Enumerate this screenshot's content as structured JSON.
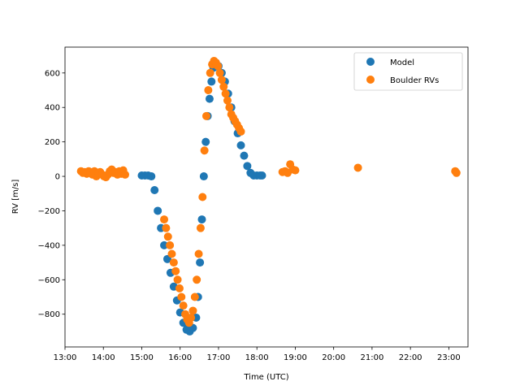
{
  "chart_data": {
    "type": "scatter",
    "title": "",
    "xlabel": "Time (UTC)",
    "ylabel": "RV [m/s]",
    "xlim": [
      "13:00",
      "23:30"
    ],
    "ylim": [
      -990,
      750
    ],
    "x_ticks": [
      "13:00",
      "14:00",
      "15:00",
      "16:00",
      "17:00",
      "18:00",
      "19:00",
      "20:00",
      "21:00",
      "22:00",
      "23:00"
    ],
    "y_ticks": [
      -800,
      -600,
      -400,
      -200,
      0,
      200,
      400,
      600
    ],
    "grid": false,
    "legend_position": "top-right",
    "series": [
      {
        "name": "Model",
        "color": "#1f77b4",
        "x": [
          "15:00",
          "15:05",
          "15:10",
          "15:15",
          "15:20",
          "15:25",
          "15:30",
          "15:35",
          "15:40",
          "15:45",
          "15:50",
          "15:55",
          "16:00",
          "16:05",
          "16:10",
          "16:15",
          "16:20",
          "16:25",
          "16:28",
          "16:31",
          "16:34",
          "16:37",
          "16:40",
          "16:43",
          "16:46",
          "16:49",
          "16:52",
          "16:55",
          "17:00",
          "17:05",
          "17:10",
          "17:15",
          "17:20",
          "17:25",
          "17:30",
          "17:35",
          "17:40",
          "17:45",
          "17:50",
          "17:55",
          "18:00",
          "18:05",
          "18:08"
        ],
        "y": [
          5,
          5,
          5,
          0,
          -80,
          -200,
          -300,
          -400,
          -480,
          -560,
          -640,
          -720,
          -790,
          -850,
          -890,
          -900,
          -880,
          -820,
          -700,
          -500,
          -250,
          0,
          200,
          350,
          450,
          550,
          630,
          660,
          640,
          600,
          550,
          480,
          400,
          320,
          250,
          180,
          120,
          60,
          20,
          5,
          5,
          5,
          5
        ]
      },
      {
        "name": "Boulder RVs",
        "color": "#ff7f0e",
        "x": [
          "13:25",
          "13:28",
          "13:31",
          "13:34",
          "13:37",
          "13:40",
          "13:43",
          "13:46",
          "13:49",
          "13:52",
          "13:55",
          "13:58",
          "14:01",
          "14:04",
          "14:07",
          "14:10",
          "14:13",
          "14:16",
          "14:19",
          "14:22",
          "14:25",
          "14:28",
          "14:31",
          "14:34",
          "15:35",
          "15:38",
          "15:41",
          "15:44",
          "15:47",
          "15:50",
          "15:53",
          "15:56",
          "15:59",
          "16:02",
          "16:05",
          "16:08",
          "16:11",
          "16:14",
          "16:17",
          "16:20",
          "16:23",
          "16:26",
          "16:29",
          "16:32",
          "16:35",
          "16:38",
          "16:41",
          "16:44",
          "16:47",
          "16:50",
          "16:53",
          "16:56",
          "16:59",
          "17:02",
          "17:05",
          "17:08",
          "17:11",
          "17:14",
          "17:17",
          "17:20",
          "17:23",
          "17:26",
          "17:29",
          "17:32",
          "17:35",
          "18:40",
          "18:44",
          "18:48",
          "18:52",
          "18:56",
          "19:00",
          "20:38",
          "23:10",
          "23:12"
        ],
        "y": [
          30,
          20,
          25,
          15,
          30,
          20,
          10,
          30,
          0,
          20,
          25,
          10,
          0,
          -5,
          10,
          30,
          40,
          20,
          25,
          10,
          30,
          15,
          35,
          10,
          -250,
          -300,
          -350,
          -400,
          -450,
          -500,
          -550,
          -600,
          -650,
          -700,
          -750,
          -800,
          -830,
          -850,
          -820,
          -780,
          -700,
          -600,
          -450,
          -300,
          -120,
          150,
          350,
          500,
          600,
          650,
          670,
          660,
          640,
          600,
          560,
          520,
          480,
          440,
          400,
          360,
          340,
          320,
          300,
          280,
          260,
          25,
          30,
          20,
          70,
          40,
          35,
          50,
          30,
          20
        ]
      }
    ]
  }
}
